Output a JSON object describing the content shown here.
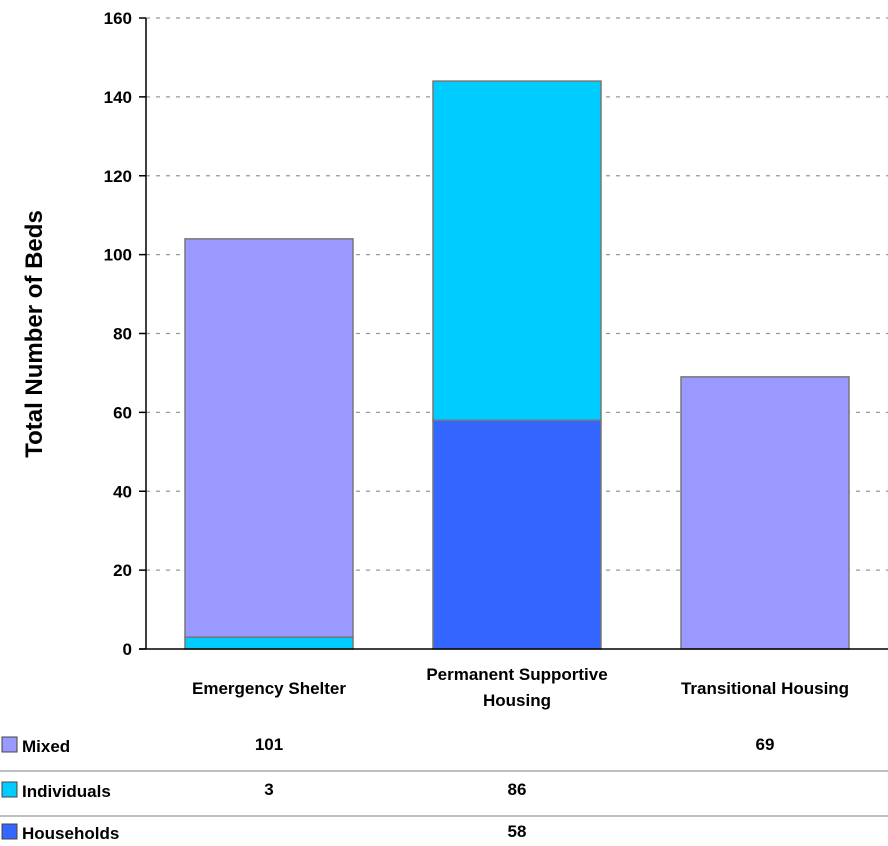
{
  "chart_data": {
    "type": "bar",
    "stacked": true,
    "title": "",
    "xlabel": "",
    "ylabel": "Total Number of Beds",
    "ylim": [
      0,
      160
    ],
    "yticks": [
      0,
      20,
      40,
      60,
      80,
      100,
      120,
      140,
      160
    ],
    "grid": true,
    "legend": "data-table-below",
    "categories": [
      "Emergency Shelter",
      "Permanent Supportive Housing",
      "Transitional Housing"
    ],
    "series": [
      {
        "name": "Households",
        "color": "#3366ff",
        "values": [
          0,
          58,
          0
        ]
      },
      {
        "name": "Individuals",
        "color": "#00ccff",
        "values": [
          3,
          86,
          0
        ]
      },
      {
        "name": "Mixed",
        "color": "#9999ff",
        "values": [
          101,
          0,
          69
        ]
      }
    ],
    "table": {
      "rows": [
        {
          "name": "Mixed",
          "color": "#9999ff",
          "cells": [
            "101",
            "",
            "69"
          ]
        },
        {
          "name": "Individuals",
          "color": "#00ccff",
          "cells": [
            "3",
            "86",
            ""
          ]
        },
        {
          "name": "Households",
          "color": "#3366ff",
          "cells": [
            "",
            "58",
            ""
          ]
        }
      ]
    }
  }
}
